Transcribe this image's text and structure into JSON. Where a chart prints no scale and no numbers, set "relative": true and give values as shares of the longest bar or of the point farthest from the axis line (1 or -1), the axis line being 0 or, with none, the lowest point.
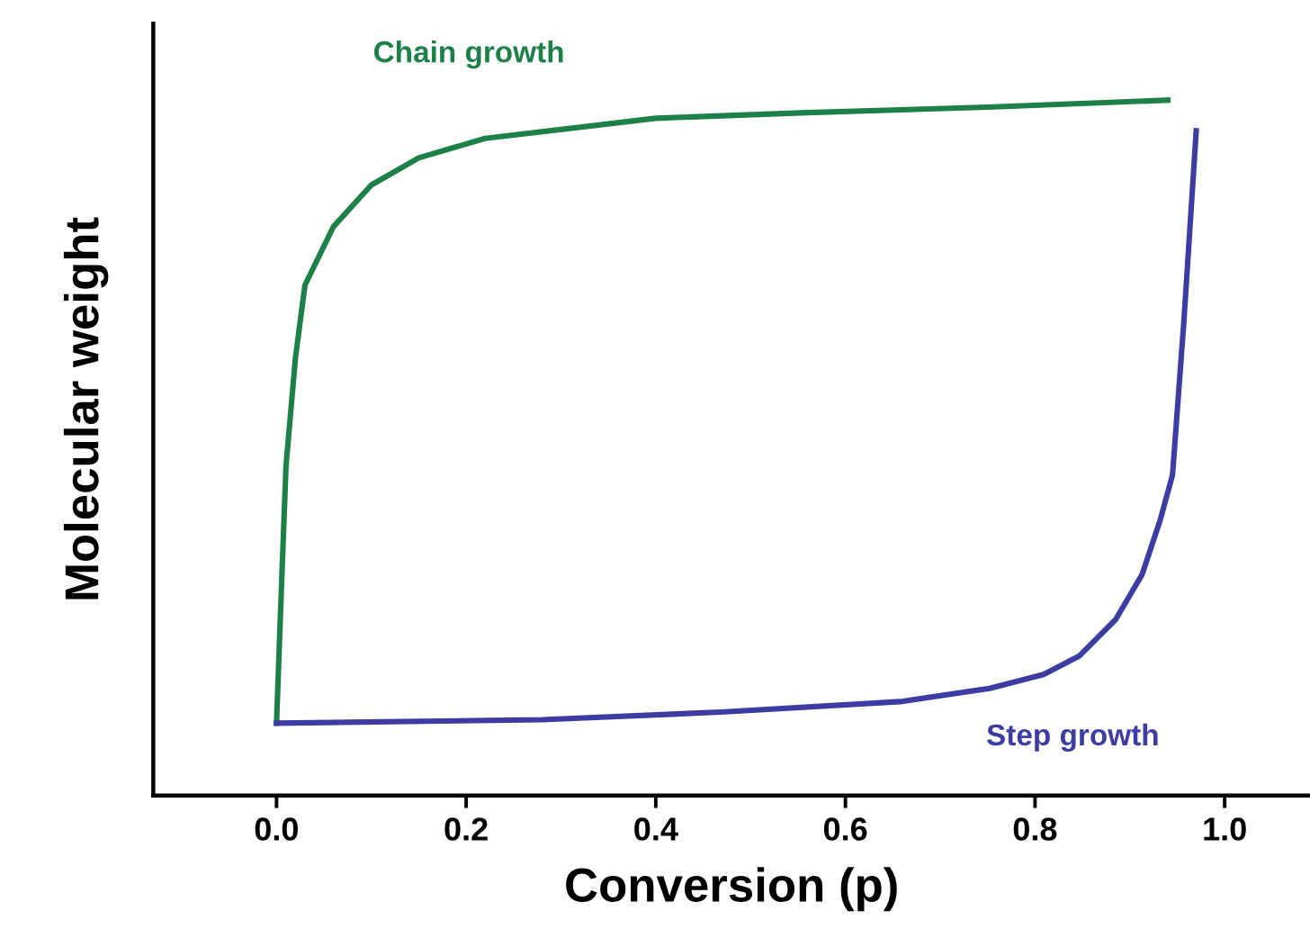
{
  "chart_data": {
    "type": "line",
    "relative": true,
    "xlabel": "Conversion (p)",
    "ylabel": "Molecular weight",
    "xlim": [
      -0.13,
      1.09
    ],
    "xticks": [
      {
        "value": 0.0,
        "label": "0.0"
      },
      {
        "value": 0.2,
        "label": "0.2"
      },
      {
        "value": 0.4,
        "label": "0.4"
      },
      {
        "value": 0.6,
        "label": "0.6"
      },
      {
        "value": 0.8,
        "label": "0.8"
      },
      {
        "value": 1.0,
        "label": "1.0"
      }
    ],
    "grid": false,
    "legend": false,
    "marker": "none",
    "line_style": "solid",
    "series": [
      {
        "name": "Chain growth",
        "color": "#1d8048",
        "x": [
          0.0,
          0.005,
          0.01,
          0.02,
          0.03,
          0.06,
          0.1,
          0.15,
          0.22,
          0.4,
          0.56,
          0.75,
          0.94
        ],
        "values": [
          0.104,
          0.292,
          0.474,
          0.63,
          0.734,
          0.818,
          0.878,
          0.917,
          0.945,
          0.974,
          0.982,
          0.99,
          1.0
        ]
      },
      {
        "name": "Step growth",
        "color": "#3c3ca2",
        "x": [
          0.0,
          0.28,
          0.469,
          0.658,
          0.752,
          0.809,
          0.847,
          0.885,
          0.913,
          0.932,
          0.945,
          0.957,
          0.97
        ],
        "values": [
          0.104,
          0.109,
          0.12,
          0.135,
          0.154,
          0.174,
          0.201,
          0.253,
          0.318,
          0.396,
          0.461,
          0.682,
          0.956
        ]
      }
    ]
  }
}
